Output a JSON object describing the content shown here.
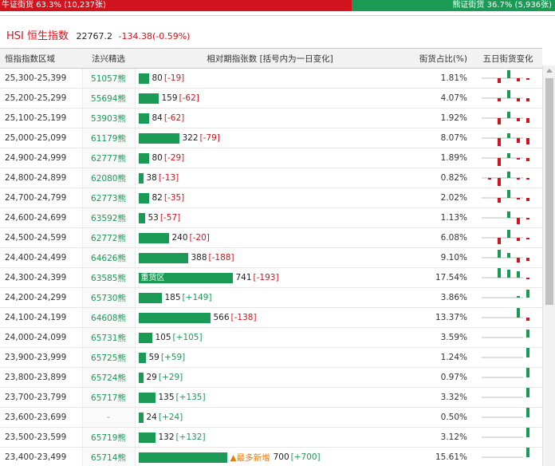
{
  "ratio": {
    "bull_text": "牛证街货 63.3% (10,237张)",
    "bear_text": "熊证街货 36.7% (5,936张)",
    "bull_fraction": 0.633
  },
  "index": {
    "title": "HSI 恒生指数",
    "price": "22767.2",
    "change": "-134.38(-0.59%)"
  },
  "table": {
    "headers": [
      "恒指指数区域",
      "法兴精选",
      "相对期指张数 [括号内为一日变化]",
      "街货占比(%)",
      "五日街货变化"
    ],
    "rows": [
      {
        "range": "25,300-25,399",
        "warrant": "51057熊",
        "qty": 80,
        "qty_text": "80",
        "chg": "[-19]",
        "chg_sign": "neg",
        "pct": "1.81%",
        "note": "",
        "bar_label": "",
        "spark": [
          0,
          -3,
          5,
          -2,
          -1
        ]
      },
      {
        "range": "25,200-25,299",
        "warrant": "55694熊",
        "qty": 159,
        "qty_text": "159",
        "chg": "[-62]",
        "chg_sign": "neg",
        "pct": "4.07%",
        "note": "",
        "bar_label": "",
        "spark": [
          0,
          -2,
          5,
          -2,
          -2
        ]
      },
      {
        "range": "25,100-25,199",
        "warrant": "53903熊",
        "qty": 84,
        "qty_text": "84",
        "chg": "[-62]",
        "chg_sign": "neg",
        "pct": "1.92%",
        "note": "",
        "bar_label": "",
        "spark": [
          0,
          -4,
          4,
          -2,
          -3
        ]
      },
      {
        "range": "25,000-25,099",
        "warrant": "61179熊",
        "qty": 322,
        "qty_text": "322",
        "chg": "[-79]",
        "chg_sign": "neg",
        "pct": "8.07%",
        "note": "",
        "bar_label": "",
        "spark": [
          0,
          -5,
          3,
          -3,
          -4
        ]
      },
      {
        "range": "24,900-24,999",
        "warrant": "62777熊",
        "qty": 80,
        "qty_text": "80",
        "chg": "[-29]",
        "chg_sign": "neg",
        "pct": "1.89%",
        "note": "",
        "bar_label": "",
        "spark": [
          0,
          -5,
          3,
          -1,
          -2
        ]
      },
      {
        "range": "24,800-24,899",
        "warrant": "62080熊",
        "qty": 38,
        "qty_text": "38",
        "chg": "[-13]",
        "chg_sign": "neg",
        "pct": "0.82%",
        "note": "",
        "bar_label": "",
        "spark": [
          -1,
          -5,
          4,
          -1,
          -1
        ]
      },
      {
        "range": "24,700-24,799",
        "warrant": "62773熊",
        "qty": 82,
        "qty_text": "82",
        "chg": "[-35]",
        "chg_sign": "neg",
        "pct": "2.02%",
        "note": "",
        "bar_label": "",
        "spark": [
          0,
          -3,
          5,
          -1,
          -2
        ]
      },
      {
        "range": "24,600-24,699",
        "warrant": "63592熊",
        "qty": 53,
        "qty_text": "53",
        "chg": "[-57]",
        "chg_sign": "neg",
        "pct": "1.13%",
        "note": "",
        "bar_label": "",
        "spark": [
          0,
          0,
          4,
          -4,
          -1
        ]
      },
      {
        "range": "24,500-24,599",
        "warrant": "62772熊",
        "qty": 240,
        "qty_text": "240",
        "chg": "[-20]",
        "chg_sign": "neg",
        "pct": "6.08%",
        "note": "",
        "bar_label": "",
        "spark": [
          0,
          -4,
          5,
          -2,
          -1
        ]
      },
      {
        "range": "24,400-24,499",
        "warrant": "64626熊",
        "qty": 388,
        "qty_text": "388",
        "chg": "[-188]",
        "chg_sign": "neg",
        "pct": "9.10%",
        "note": "",
        "bar_label": "",
        "spark": [
          0,
          5,
          3,
          -3,
          -2
        ]
      },
      {
        "range": "24,300-24,399",
        "warrant": "63585熊",
        "qty": 741,
        "qty_text": "741",
        "chg": "[-193]",
        "chg_sign": "neg",
        "pct": "17.54%",
        "note": "",
        "bar_label": "重货区",
        "spark": [
          0,
          6,
          5,
          4,
          -1
        ]
      },
      {
        "range": "24,200-24,299",
        "warrant": "65730熊",
        "qty": 185,
        "qty_text": "185",
        "chg": "[+149]",
        "chg_sign": "pos",
        "pct": "3.86%",
        "note": "",
        "bar_label": "",
        "spark": [
          0,
          0,
          0,
          1,
          5
        ]
      },
      {
        "range": "24,100-24,199",
        "warrant": "64608熊",
        "qty": 566,
        "qty_text": "566",
        "chg": "[-138]",
        "chg_sign": "neg",
        "pct": "13.37%",
        "note": "",
        "bar_label": "",
        "spark": [
          0,
          0,
          0,
          6,
          -2
        ]
      },
      {
        "range": "24,000-24,099",
        "warrant": "65731熊",
        "qty": 105,
        "qty_text": "105",
        "chg": "[+105]",
        "chg_sign": "pos",
        "pct": "3.59%",
        "note": "",
        "bar_label": "",
        "spark": [
          0,
          0,
          0,
          0,
          5
        ]
      },
      {
        "range": "23,900-23,999",
        "warrant": "65725熊",
        "qty": 59,
        "qty_text": "59",
        "chg": "[+59]",
        "chg_sign": "pos",
        "pct": "1.24%",
        "note": "",
        "bar_label": "",
        "spark": [
          0,
          0,
          0,
          0,
          6
        ]
      },
      {
        "range": "23,800-23,899",
        "warrant": "65724熊",
        "qty": 29,
        "qty_text": "29",
        "chg": "[+29]",
        "chg_sign": "pos",
        "pct": "0.97%",
        "note": "",
        "bar_label": "",
        "spark": [
          0,
          0,
          0,
          0,
          6
        ]
      },
      {
        "range": "23,700-23,799",
        "warrant": "65717熊",
        "qty": 135,
        "qty_text": "135",
        "chg": "[+135]",
        "chg_sign": "pos",
        "pct": "3.32%",
        "note": "",
        "bar_label": "",
        "spark": [
          0,
          0,
          0,
          0,
          6
        ]
      },
      {
        "range": "23,600-23,699",
        "warrant": "-",
        "qty": 24,
        "qty_text": "24",
        "chg": "[+24]",
        "chg_sign": "pos",
        "pct": "0.50%",
        "note": "",
        "bar_label": "",
        "spark": [
          0,
          0,
          0,
          0,
          6
        ]
      },
      {
        "range": "23,500-23,599",
        "warrant": "65719熊",
        "qty": 132,
        "qty_text": "132",
        "chg": "[+132]",
        "chg_sign": "pos",
        "pct": "3.12%",
        "note": "",
        "bar_label": "",
        "spark": [
          0,
          0,
          0,
          0,
          6
        ]
      },
      {
        "range": "23,400-23,499",
        "warrant": "65714熊",
        "qty": 700,
        "qty_text": "700",
        "chg": "[+700]",
        "chg_sign": "pos",
        "pct": "15.61%",
        "note": "▲最多新增",
        "bar_label": "",
        "spark": [
          0,
          0,
          0,
          0,
          6
        ]
      }
    ]
  },
  "colors": {
    "bull": "#d2141e",
    "bear": "#1a9a55",
    "bar": "#1a9a55",
    "accent_note": "#e87a00"
  }
}
